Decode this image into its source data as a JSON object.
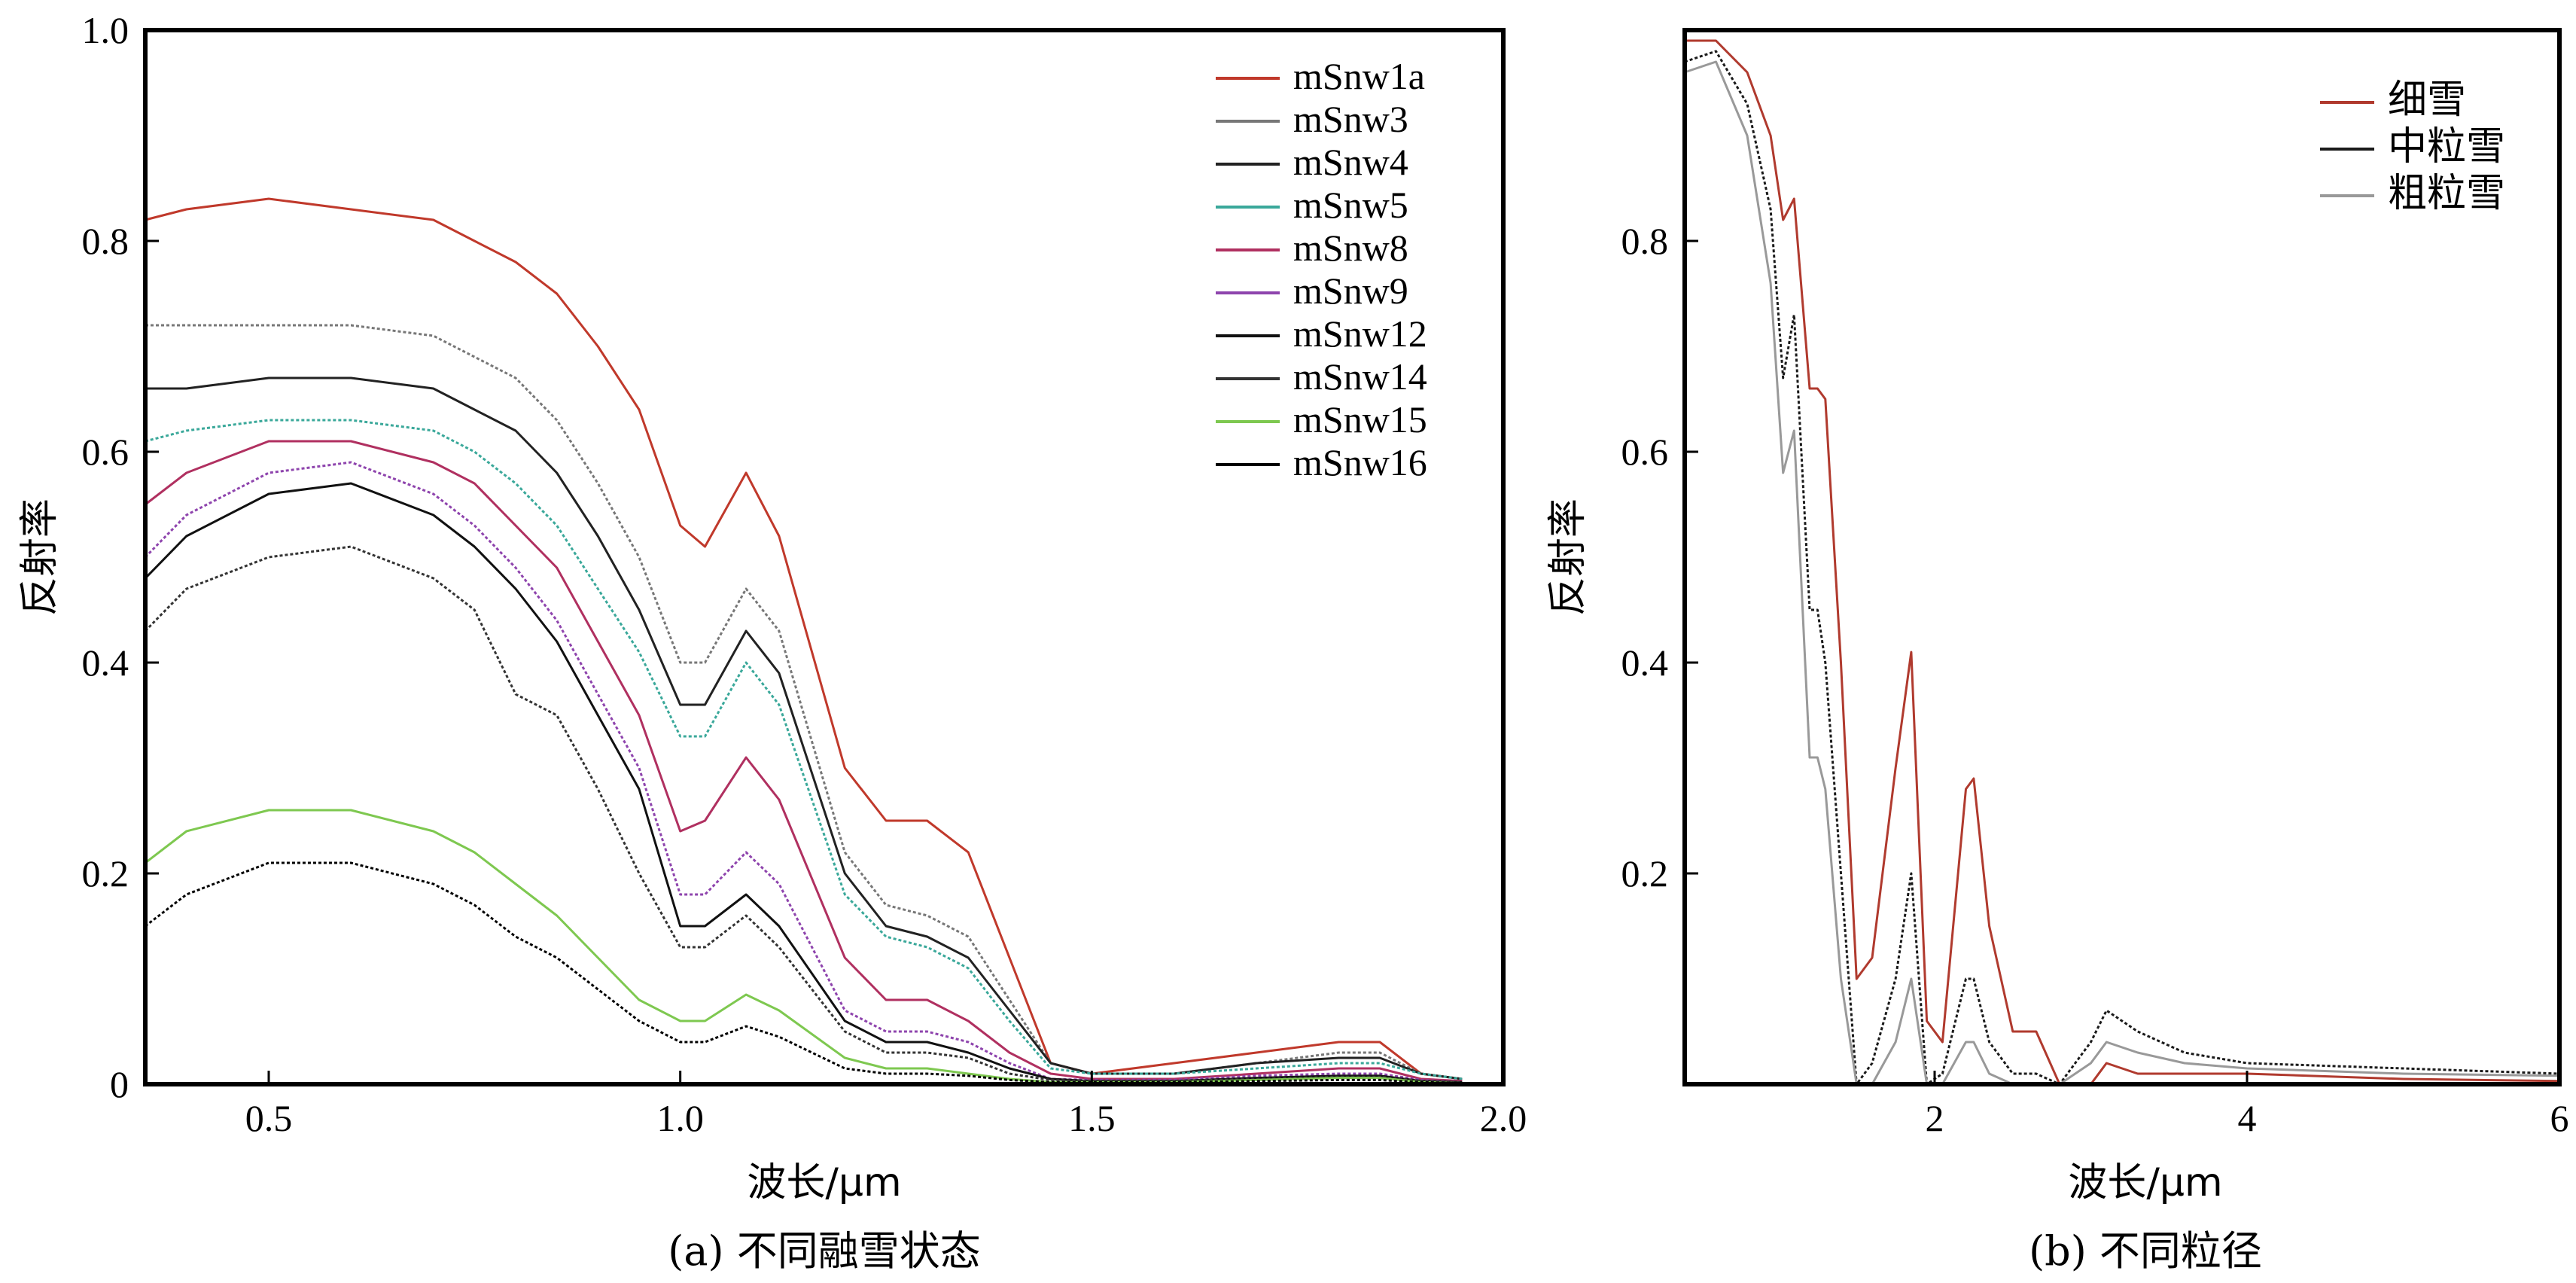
{
  "chart_data": [
    {
      "type": "line",
      "caption": "(a) 不同融雪状态",
      "xlabel": "波长/μm",
      "ylabel": "反射率",
      "xlim": [
        0.35,
        2.0
      ],
      "ylim": [
        0,
        1.0
      ],
      "xticks": [
        0.5,
        1.0,
        1.5,
        2.0
      ],
      "xtick_labels": [
        "0.5",
        "1.0",
        "1.5",
        "2.0"
      ],
      "yticks": [
        0,
        0.2,
        0.4,
        0.6,
        0.8,
        1.0
      ],
      "ytick_labels": [
        "0",
        "0.2",
        "0.4",
        "0.6",
        "0.8",
        "1.0"
      ],
      "legend_position": "top-right",
      "series": [
        {
          "name": "mSnw1a",
          "color": "#c0392b",
          "x": [
            0.35,
            0.4,
            0.5,
            0.6,
            0.7,
            0.75,
            0.8,
            0.85,
            0.9,
            0.95,
            1.0,
            1.03,
            1.08,
            1.12,
            1.2,
            1.25,
            1.3,
            1.35,
            1.4,
            1.45,
            1.5,
            1.6,
            1.7,
            1.8,
            1.85,
            1.9,
            1.95
          ],
          "y": [
            0.82,
            0.83,
            0.84,
            0.83,
            0.82,
            0.8,
            0.78,
            0.75,
            0.7,
            0.64,
            0.53,
            0.51,
            0.58,
            0.52,
            0.3,
            0.25,
            0.25,
            0.22,
            0.12,
            0.02,
            0.01,
            0.02,
            0.03,
            0.04,
            0.04,
            0.01,
            0.005
          ]
        },
        {
          "name": "mSnw3",
          "color": "#777777",
          "x": [
            0.35,
            0.4,
            0.5,
            0.6,
            0.7,
            0.75,
            0.8,
            0.85,
            0.9,
            0.95,
            1.0,
            1.03,
            1.08,
            1.12,
            1.2,
            1.25,
            1.3,
            1.35,
            1.4,
            1.45,
            1.5,
            1.6,
            1.7,
            1.8,
            1.85,
            1.9,
            1.95
          ],
          "y": [
            0.72,
            0.72,
            0.72,
            0.72,
            0.71,
            0.69,
            0.67,
            0.63,
            0.57,
            0.5,
            0.4,
            0.4,
            0.47,
            0.43,
            0.22,
            0.17,
            0.16,
            0.14,
            0.08,
            0.02,
            0.01,
            0.01,
            0.02,
            0.03,
            0.03,
            0.01,
            0.005
          ]
        },
        {
          "name": "mSnw4",
          "color": "#222222",
          "x": [
            0.35,
            0.4,
            0.5,
            0.6,
            0.7,
            0.75,
            0.8,
            0.85,
            0.9,
            0.95,
            1.0,
            1.03,
            1.08,
            1.12,
            1.2,
            1.25,
            1.3,
            1.35,
            1.4,
            1.45,
            1.5,
            1.6,
            1.7,
            1.8,
            1.85,
            1.9,
            1.95
          ],
          "y": [
            0.66,
            0.66,
            0.67,
            0.67,
            0.66,
            0.64,
            0.62,
            0.58,
            0.52,
            0.45,
            0.36,
            0.36,
            0.43,
            0.39,
            0.2,
            0.15,
            0.14,
            0.12,
            0.07,
            0.02,
            0.01,
            0.01,
            0.02,
            0.025,
            0.025,
            0.01,
            0.005
          ]
        },
        {
          "name": "mSnw5",
          "color": "#3aa89a",
          "x": [
            0.35,
            0.4,
            0.5,
            0.6,
            0.7,
            0.75,
            0.8,
            0.85,
            0.9,
            0.95,
            1.0,
            1.03,
            1.08,
            1.12,
            1.2,
            1.25,
            1.3,
            1.35,
            1.4,
            1.45,
            1.5,
            1.6,
            1.7,
            1.8,
            1.85,
            1.9,
            1.95
          ],
          "y": [
            0.61,
            0.62,
            0.63,
            0.63,
            0.62,
            0.6,
            0.57,
            0.53,
            0.47,
            0.41,
            0.33,
            0.33,
            0.4,
            0.36,
            0.18,
            0.14,
            0.13,
            0.11,
            0.06,
            0.015,
            0.01,
            0.01,
            0.015,
            0.02,
            0.02,
            0.01,
            0.005
          ]
        },
        {
          "name": "mSnw8",
          "color": "#b03060",
          "x": [
            0.35,
            0.4,
            0.5,
            0.6,
            0.7,
            0.75,
            0.8,
            0.85,
            0.9,
            0.95,
            1.0,
            1.03,
            1.08,
            1.12,
            1.2,
            1.25,
            1.3,
            1.35,
            1.4,
            1.45,
            1.5,
            1.6,
            1.7,
            1.8,
            1.85,
            1.9,
            1.95
          ],
          "y": [
            0.55,
            0.58,
            0.61,
            0.61,
            0.59,
            0.57,
            0.53,
            0.49,
            0.42,
            0.35,
            0.24,
            0.25,
            0.31,
            0.27,
            0.12,
            0.08,
            0.08,
            0.06,
            0.03,
            0.01,
            0.005,
            0.005,
            0.01,
            0.015,
            0.015,
            0.005,
            0.003
          ]
        },
        {
          "name": "mSnw9",
          "color": "#8e44ad",
          "x": [
            0.35,
            0.4,
            0.5,
            0.6,
            0.7,
            0.75,
            0.8,
            0.85,
            0.9,
            0.95,
            1.0,
            1.03,
            1.08,
            1.12,
            1.2,
            1.25,
            1.3,
            1.35,
            1.4,
            1.45,
            1.5,
            1.6,
            1.7,
            1.8,
            1.85,
            1.9,
            1.95
          ],
          "y": [
            0.5,
            0.54,
            0.58,
            0.59,
            0.56,
            0.53,
            0.49,
            0.44,
            0.37,
            0.3,
            0.18,
            0.18,
            0.22,
            0.19,
            0.07,
            0.05,
            0.05,
            0.04,
            0.02,
            0.005,
            0.004,
            0.004,
            0.008,
            0.01,
            0.01,
            0.004,
            0.002
          ]
        },
        {
          "name": "mSnw12",
          "color": "#111111",
          "x": [
            0.35,
            0.4,
            0.5,
            0.6,
            0.7,
            0.75,
            0.8,
            0.85,
            0.9,
            0.95,
            1.0,
            1.03,
            1.08,
            1.12,
            1.2,
            1.25,
            1.3,
            1.35,
            1.4,
            1.45,
            1.5,
            1.6,
            1.7,
            1.8,
            1.85,
            1.9,
            1.95
          ],
          "y": [
            0.48,
            0.52,
            0.56,
            0.57,
            0.54,
            0.51,
            0.47,
            0.42,
            0.35,
            0.28,
            0.15,
            0.15,
            0.18,
            0.15,
            0.06,
            0.04,
            0.04,
            0.03,
            0.015,
            0.005,
            0.003,
            0.003,
            0.006,
            0.008,
            0.008,
            0.003,
            0.002
          ]
        },
        {
          "name": "mSnw14",
          "color": "#333333",
          "x": [
            0.35,
            0.4,
            0.5,
            0.6,
            0.7,
            0.75,
            0.8,
            0.85,
            0.9,
            0.95,
            1.0,
            1.03,
            1.08,
            1.12,
            1.2,
            1.25,
            1.3,
            1.35,
            1.4,
            1.45,
            1.5,
            1.6,
            1.7,
            1.8,
            1.85,
            1.9,
            1.95
          ],
          "y": [
            0.43,
            0.47,
            0.5,
            0.51,
            0.48,
            0.45,
            0.37,
            0.35,
            0.28,
            0.2,
            0.13,
            0.13,
            0.16,
            0.13,
            0.05,
            0.03,
            0.03,
            0.025,
            0.01,
            0.004,
            0.003,
            0.003,
            0.005,
            0.007,
            0.007,
            0.003,
            0.002
          ]
        },
        {
          "name": "mSnw15",
          "color": "#7ec850",
          "x": [
            0.35,
            0.4,
            0.5,
            0.6,
            0.7,
            0.75,
            0.8,
            0.85,
            0.9,
            0.95,
            1.0,
            1.03,
            1.08,
            1.12,
            1.2,
            1.25,
            1.3,
            1.35,
            1.4,
            1.45,
            1.5,
            1.6,
            1.7,
            1.8,
            1.85,
            1.9,
            1.95
          ],
          "y": [
            0.21,
            0.24,
            0.26,
            0.26,
            0.24,
            0.22,
            0.19,
            0.16,
            0.12,
            0.08,
            0.06,
            0.06,
            0.085,
            0.07,
            0.025,
            0.015,
            0.015,
            0.01,
            0.005,
            0.002,
            0.002,
            0.002,
            0.004,
            0.006,
            0.006,
            0.002,
            0.001
          ]
        },
        {
          "name": "mSnw16",
          "color": "#000000",
          "x": [
            0.35,
            0.4,
            0.5,
            0.6,
            0.7,
            0.75,
            0.8,
            0.85,
            0.9,
            0.95,
            1.0,
            1.03,
            1.08,
            1.12,
            1.2,
            1.25,
            1.3,
            1.35,
            1.4,
            1.45,
            1.5,
            1.6,
            1.7,
            1.8,
            1.85,
            1.9,
            1.95
          ],
          "y": [
            0.15,
            0.18,
            0.21,
            0.21,
            0.19,
            0.17,
            0.14,
            0.12,
            0.09,
            0.06,
            0.04,
            0.04,
            0.055,
            0.045,
            0.015,
            0.01,
            0.01,
            0.008,
            0.004,
            0.002,
            0.002,
            0.002,
            0.003,
            0.004,
            0.004,
            0.002,
            0.001
          ]
        }
      ]
    },
    {
      "type": "line",
      "caption": "(b) 不同粒径",
      "xlabel": "波长/μm",
      "ylabel": "反射率",
      "xlim": [
        0.4,
        6.0
      ],
      "ylim": [
        0,
        1.0
      ],
      "xticks": [
        2,
        4,
        6
      ],
      "xtick_labels": [
        "2",
        "4",
        "6"
      ],
      "yticks": [
        0.2,
        0.4,
        0.6,
        0.8
      ],
      "ytick_labels": [
        "0.2",
        "0.4",
        "0.6",
        "0.8"
      ],
      "legend_position": "top-right",
      "series": [
        {
          "name": "细雪",
          "color": "#b03a2e",
          "x": [
            0.4,
            0.6,
            0.8,
            0.95,
            1.03,
            1.1,
            1.2,
            1.25,
            1.3,
            1.4,
            1.5,
            1.6,
            1.75,
            1.85,
            1.95,
            2.05,
            2.2,
            2.25,
            2.35,
            2.5,
            2.65,
            2.8,
            3.0,
            3.1,
            3.3,
            3.6,
            4.0,
            5.0,
            6.0
          ],
          "y": [
            0.99,
            0.99,
            0.96,
            0.9,
            0.82,
            0.84,
            0.66,
            0.66,
            0.65,
            0.4,
            0.1,
            0.12,
            0.3,
            0.41,
            0.06,
            0.04,
            0.28,
            0.29,
            0.15,
            0.05,
            0.05,
            0.0,
            0.0,
            0.02,
            0.01,
            0.01,
            0.01,
            0.005,
            0.003
          ]
        },
        {
          "name": "中粒雪",
          "color": "#1a1a1a",
          "x": [
            0.4,
            0.6,
            0.8,
            0.95,
            1.03,
            1.1,
            1.2,
            1.25,
            1.3,
            1.4,
            1.5,
            1.6,
            1.75,
            1.85,
            1.95,
            2.05,
            2.2,
            2.25,
            2.35,
            2.5,
            2.65,
            2.8,
            3.0,
            3.1,
            3.3,
            3.6,
            4.0,
            5.0,
            6.0
          ],
          "y": [
            0.97,
            0.98,
            0.93,
            0.83,
            0.67,
            0.73,
            0.45,
            0.45,
            0.4,
            0.2,
            0.0,
            0.02,
            0.1,
            0.2,
            0.0,
            0.01,
            0.1,
            0.1,
            0.04,
            0.01,
            0.01,
            0.0,
            0.04,
            0.07,
            0.05,
            0.03,
            0.02,
            0.015,
            0.01
          ]
        },
        {
          "name": "粗粒雪",
          "color": "#999999",
          "x": [
            0.4,
            0.6,
            0.8,
            0.95,
            1.03,
            1.1,
            1.2,
            1.25,
            1.3,
            1.4,
            1.5,
            1.6,
            1.75,
            1.85,
            1.95,
            2.05,
            2.2,
            2.25,
            2.35,
            2.5,
            2.65,
            2.8,
            3.0,
            3.1,
            3.3,
            3.6,
            4.0,
            5.0,
            6.0
          ],
          "y": [
            0.96,
            0.97,
            0.9,
            0.76,
            0.58,
            0.62,
            0.31,
            0.31,
            0.28,
            0.1,
            0.0,
            0.0,
            0.04,
            0.1,
            0.0,
            0.0,
            0.04,
            0.04,
            0.01,
            0.0,
            0.0,
            0.0,
            0.02,
            0.04,
            0.03,
            0.02,
            0.015,
            0.01,
            0.008
          ]
        }
      ]
    }
  ]
}
